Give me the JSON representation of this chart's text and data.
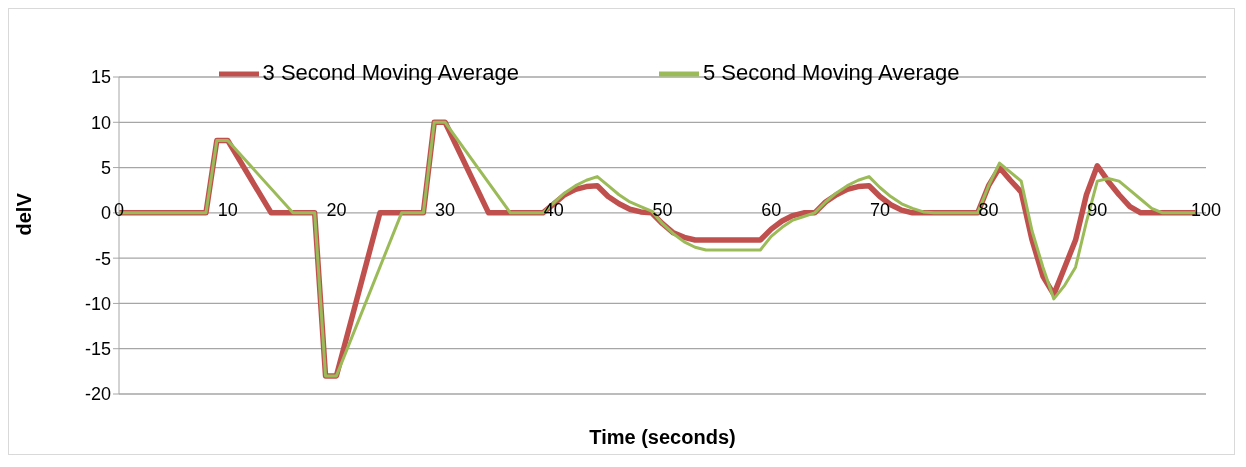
{
  "chart_data": {
    "type": "line",
    "xlabel": "Time (seconds)",
    "ylabel": "delV",
    "xlim": [
      0,
      100
    ],
    "xticks": [
      0,
      10,
      20,
      30,
      40,
      50,
      60,
      70,
      80,
      90,
      100
    ],
    "ylim": [
      -20,
      15
    ],
    "yticks": [
      -20,
      -15,
      -10,
      -5,
      0,
      5,
      10,
      15
    ],
    "grid": "y",
    "legend": "top",
    "marker": "none",
    "line_style": "solid",
    "series": [
      {
        "name": "3 Second Moving Average",
        "color": "#c0504d",
        "x": [
          0,
          8,
          9,
          10,
          14,
          18,
          19,
          20,
          24,
          28,
          29,
          30,
          34,
          39,
          40,
          41,
          42,
          43,
          44,
          45,
          46,
          47,
          48,
          49,
          50,
          51,
          52,
          53,
          59,
          60,
          61,
          62,
          63,
          64,
          65,
          66,
          67,
          68,
          69,
          70,
          71,
          72,
          73,
          79,
          80,
          81,
          82,
          83,
          84,
          85,
          86,
          87,
          88,
          89,
          90,
          91,
          92,
          93,
          94,
          99
        ],
        "values": [
          0,
          0,
          8,
          8,
          0,
          0,
          -18,
          -18,
          0,
          0,
          10,
          10,
          0,
          0,
          1,
          2,
          2.6,
          2.9,
          3,
          1.8,
          1,
          0.4,
          0.1,
          0,
          -1.2,
          -2.2,
          -2.7,
          -3,
          -3,
          -1.8,
          -0.9,
          -0.3,
          0,
          0,
          1.2,
          2,
          2.6,
          2.9,
          3,
          1.8,
          0.9,
          0.3,
          0,
          0,
          3,
          5,
          3.6,
          2.3,
          -3,
          -7,
          -9,
          -6,
          -3,
          2,
          5.2,
          3.5,
          2,
          0.7,
          0,
          0
        ]
      },
      {
        "name": "5 Second Moving Average",
        "color": "#9bbb59",
        "x": [
          0,
          8,
          9,
          10,
          16,
          18,
          19,
          20,
          26,
          28,
          29,
          30,
          36,
          39,
          40,
          41,
          42,
          43,
          44,
          45,
          46,
          47,
          48,
          49,
          50,
          51,
          52,
          53,
          54,
          59,
          60,
          61,
          62,
          63,
          64,
          65,
          66,
          67,
          68,
          69,
          70,
          71,
          72,
          73,
          74,
          75,
          79,
          80,
          81,
          82,
          83,
          84,
          85,
          86,
          87,
          88,
          89,
          90,
          91,
          92,
          93,
          94,
          95,
          96,
          99
        ],
        "values": [
          0,
          0,
          8,
          8,
          0,
          0,
          -18,
          -18,
          0,
          0,
          10,
          10,
          0,
          0,
          1.1,
          2.2,
          3,
          3.6,
          4,
          3,
          2,
          1.2,
          0.7,
          0.2,
          -1.2,
          -2.3,
          -3.2,
          -3.8,
          -4.1,
          -4.1,
          -2.6,
          -1.6,
          -0.8,
          -0.4,
          0,
          1.2,
          2.2,
          3,
          3.6,
          4,
          2.8,
          1.8,
          1,
          0.5,
          0.1,
          0,
          0,
          3,
          5.5,
          4.5,
          3.5,
          -2,
          -6,
          -9.5,
          -8,
          -6,
          -1,
          3.5,
          3.8,
          3.5,
          2.5,
          1.5,
          0.5,
          0,
          0
        ]
      }
    ]
  }
}
